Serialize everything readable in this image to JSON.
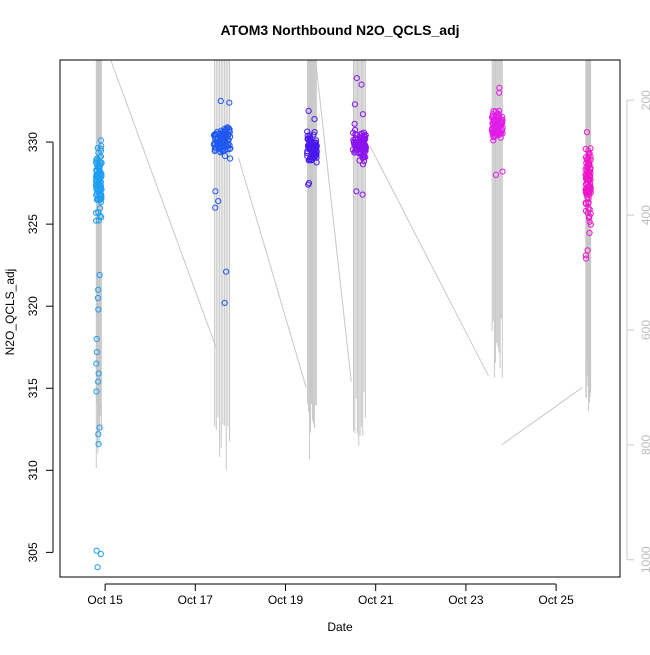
{
  "chart_data": {
    "type": "scatter",
    "title": "ATOM3 Northbound N2O_QCLS_adj",
    "xlabel": "Date",
    "ylabel": "N2O_QCLS_adj",
    "xlim": [
      "2017-10-14T00:00",
      "2017-10-26T10:00"
    ],
    "ylim": [
      303.5,
      335.0
    ],
    "y2lim": [
      1030,
      130
    ],
    "grid": false,
    "legend": "none",
    "x_ticks": [
      {
        "date": "2017-10-15T00:00",
        "label": "Oct 15"
      },
      {
        "date": "2017-10-17T00:00",
        "label": "Oct 17"
      },
      {
        "date": "2017-10-19T00:00",
        "label": "Oct 19"
      },
      {
        "date": "2017-10-21T00:00",
        "label": "Oct 21"
      },
      {
        "date": "2017-10-23T00:00",
        "label": "Oct 23"
      },
      {
        "date": "2017-10-25T00:00",
        "label": "Oct 25"
      }
    ],
    "y_ticks": [
      305,
      310,
      315,
      320,
      325,
      330
    ],
    "y2_ticks": [
      200,
      400,
      600,
      800,
      1000
    ],
    "secondary_series_color": "#c8c8c8",
    "flights": [
      {
        "t0": "2017-10-14T19:10",
        "t1": "2017-10-14T22:10",
        "n2o_center": 327.5,
        "n2o_spread": 1.8,
        "color": "#1e9ef0",
        "outliers": [
          330.1,
          321.9,
          321.0,
          320.5,
          319.8,
          318.0,
          317.2,
          316.5,
          315.9,
          315.4,
          314.8,
          312.6,
          312.2,
          311.6,
          305.1,
          304.9,
          304.1,
          303.2,
          327.9,
          329.0,
          328.7
        ],
        "pressure_min": 130,
        "pressure_max": 840
      },
      {
        "t0": "2017-10-17T09:50",
        "t1": "2017-10-17T18:40",
        "n2o_center": 330.1,
        "n2o_spread": 0.9,
        "color": "#1f58f0",
        "outliers": [
          322.1,
          320.2,
          326.4,
          326.0,
          327.0,
          332.5,
          332.4
        ],
        "pressure_min": 130,
        "pressure_max": 850
      },
      {
        "t0": "2017-10-19T11:30",
        "t1": "2017-10-19T16:40",
        "n2o_center": 329.6,
        "n2o_spread": 0.8,
        "color": "#4a19ef",
        "outliers": [
          327.5,
          327.4,
          331.9,
          331.4
        ],
        "pressure_min": 130,
        "pressure_max": 840
      },
      {
        "t0": "2017-10-20T11:50",
        "t1": "2017-10-20T18:50",
        "n2o_center": 329.8,
        "n2o_spread": 1.0,
        "color": "#8a14ee",
        "outliers": [
          327.0,
          326.8,
          333.9,
          333.5,
          332.3,
          331.7
        ],
        "pressure_min": 130,
        "pressure_max": 820
      },
      {
        "t0": "2017-10-23T13:40",
        "t1": "2017-10-23T19:40",
        "n2o_center": 331.0,
        "n2o_spread": 0.8,
        "color": "#e21ce9",
        "outliers": [
          328.2,
          328.0,
          333.3,
          333.0
        ],
        "pressure_min": 130,
        "pressure_max": 690
      },
      {
        "t0": "2017-10-25T15:40",
        "t1": "2017-10-25T18:30",
        "n2o_center": 327.5,
        "n2o_spread": 2.4,
        "color": "#ee17c9",
        "outliers": [
          323.4,
          323.1,
          322.9,
          330.6
        ],
        "pressure_min": 130,
        "pressure_max": 760
      }
    ],
    "pressure_connectors": [
      {
        "from": "2017-10-15T03:00",
        "from_p": 130,
        "to": "2017-10-17T11:00",
        "to_p": 630
      },
      {
        "from": "2017-10-17T23:00",
        "from_p": 300,
        "to": "2017-10-19T11:00",
        "to_p": 700
      },
      {
        "from": "2017-10-19T16:00",
        "from_p": 130,
        "to": "2017-10-20T11:00",
        "to_p": 690
      },
      {
        "from": "2017-10-20T21:00",
        "from_p": 280,
        "to": "2017-10-23T12:00",
        "to_p": 680
      },
      {
        "from": "2017-10-23T19:00",
        "from_p": 800,
        "to": "2017-10-25T14:00",
        "to_p": 700
      }
    ]
  }
}
